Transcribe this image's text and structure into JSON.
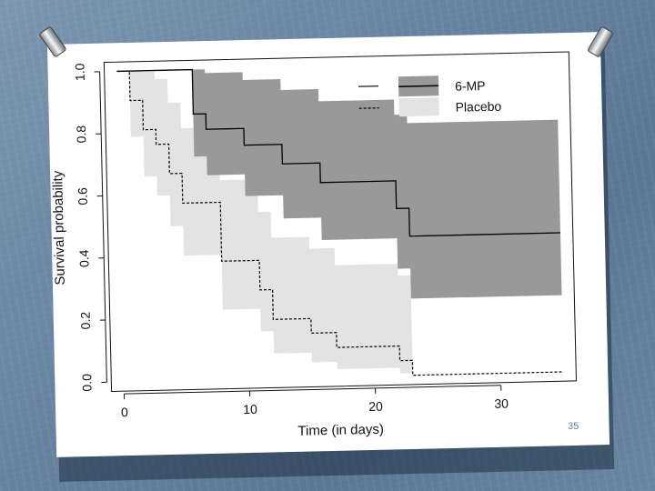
{
  "slide_number": "35",
  "colors": {
    "background": "#6a86a3",
    "band_6mp": "#999999",
    "band_placebo": "#e3e3e3",
    "line": "#000000",
    "slide_number": "#5a7ea6"
  },
  "chart_data": {
    "type": "line",
    "title": "",
    "xlabel": "Time (in days)",
    "ylabel": "Survival probability",
    "xlim": [
      -1,
      36
    ],
    "ylim": [
      -0.03,
      1.03
    ],
    "xticks": [
      0,
      10,
      20,
      30
    ],
    "xtick_labels": [
      "0",
      "10",
      "20",
      "30"
    ],
    "yticks": [
      0.0,
      0.2,
      0.4,
      0.6,
      0.8,
      1.0
    ],
    "ytick_labels": [
      "0.0",
      "0.2",
      "0.4",
      "0.6",
      "0.8",
      "1.0"
    ],
    "grid": false,
    "legend_position": "top-right",
    "series": [
      {
        "name": "6-MP",
        "line_style": "solid",
        "band_color": "#999999",
        "x": [
          0,
          6,
          7,
          10,
          13,
          16,
          22,
          23,
          35
        ],
        "y": [
          1.0,
          0.857,
          0.807,
          0.753,
          0.69,
          0.627,
          0.538,
          0.448,
          0.448
        ],
        "lower": [
          1.0,
          0.72,
          0.659,
          0.589,
          0.514,
          0.442,
          0.344,
          0.247,
          0.247
        ],
        "upper": [
          1.0,
          1.0,
          0.988,
          0.963,
          0.928,
          0.889,
          0.84,
          0.812,
          0.812
        ]
      },
      {
        "name": "Placebo",
        "line_style": "dashed",
        "band_color": "#e3e3e3",
        "x": [
          0,
          1,
          2,
          3,
          4,
          5,
          8,
          11,
          12,
          15,
          17,
          22,
          23,
          35
        ],
        "y": [
          1.0,
          0.905,
          0.81,
          0.762,
          0.667,
          0.571,
          0.381,
          0.286,
          0.19,
          0.143,
          0.095,
          0.048,
          0.0,
          0.0
        ],
        "lower": [
          1.0,
          0.788,
          0.659,
          0.597,
          0.497,
          0.402,
          0.225,
          0.152,
          0.08,
          0.049,
          0.025,
          0.007,
          0.0,
          0.0
        ],
        "upper": [
          1.0,
          1.0,
          0.996,
          0.972,
          0.894,
          0.812,
          0.642,
          0.537,
          0.453,
          0.415,
          0.36,
          0.322,
          0.0,
          0.0
        ]
      }
    ]
  }
}
